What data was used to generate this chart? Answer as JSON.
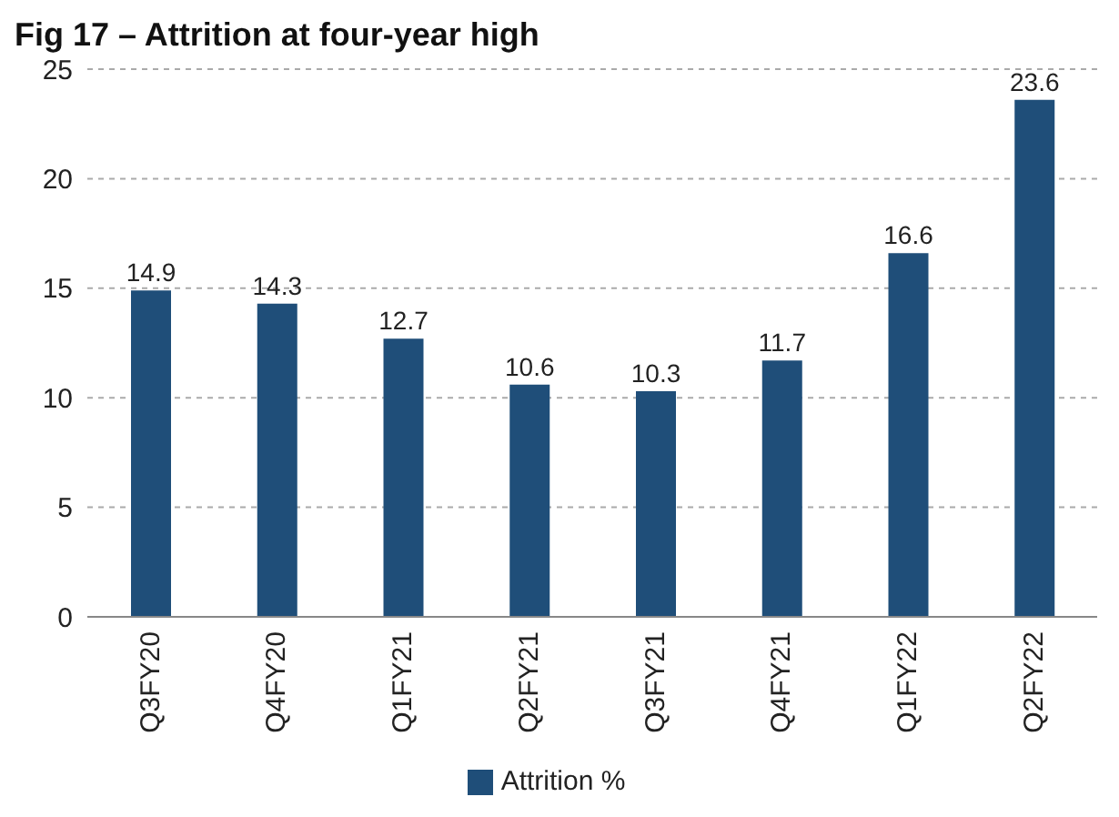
{
  "chart_data": {
    "type": "bar",
    "title": "Fig 17 – Attrition at four-year high",
    "categories": [
      "Q3FY20",
      "Q4FY20",
      "Q1FY21",
      "Q2FY21",
      "Q3FY21",
      "Q4FY21",
      "Q1FY22",
      "Q2FY22"
    ],
    "series": [
      {
        "name": "Attrition %",
        "color": "#1f4e79",
        "values": [
          14.9,
          14.3,
          12.7,
          10.6,
          10.3,
          11.7,
          16.6,
          23.6
        ]
      }
    ],
    "ylim": [
      0,
      25
    ],
    "yticks": [
      0,
      5,
      10,
      15,
      20,
      25
    ],
    "grid": "y",
    "legend": "bottom",
    "data_labels": true
  }
}
